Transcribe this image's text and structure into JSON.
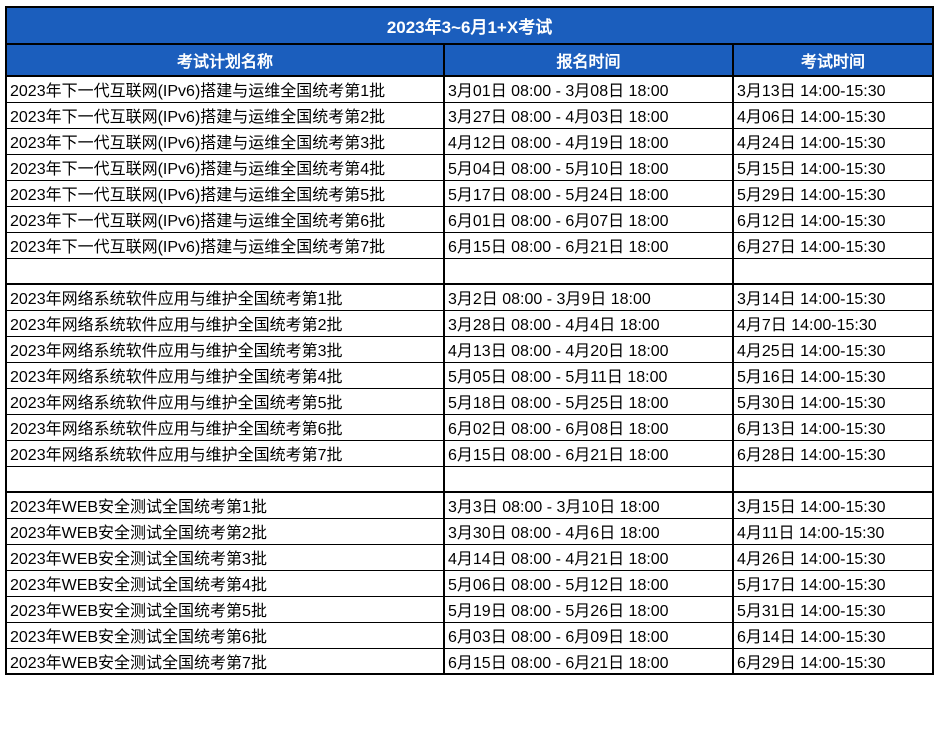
{
  "title": "2023年3~6月1+X考试",
  "columns": [
    "考试计划名称",
    "报名时间",
    "考试时间"
  ],
  "colors": {
    "header_bg": "#1B5EBD",
    "header_text": "#FFFFFF",
    "border": "#000000",
    "row_bg": "#FFFFFF"
  },
  "rows": [
    {
      "name": "2023年下一代互联网(IPv6)搭建与运维全国统考第1批",
      "signup": "3月01日 08:00 - 3月08日 18:00",
      "exam": "3月13日 14:00-15:30"
    },
    {
      "name": "2023年下一代互联网(IPv6)搭建与运维全国统考第2批",
      "signup": "3月27日 08:00 - 4月03日 18:00",
      "exam": "4月06日 14:00-15:30"
    },
    {
      "name": "2023年下一代互联网(IPv6)搭建与运维全国统考第3批",
      "signup": "4月12日 08:00 - 4月19日 18:00",
      "exam": "4月24日 14:00-15:30"
    },
    {
      "name": "2023年下一代互联网(IPv6)搭建与运维全国统考第4批",
      "signup": "5月04日 08:00 - 5月10日 18:00",
      "exam": "5月15日 14:00-15:30"
    },
    {
      "name": "2023年下一代互联网(IPv6)搭建与运维全国统考第5批",
      "signup": "5月17日 08:00 - 5月24日 18:00",
      "exam": "5月29日 14:00-15:30"
    },
    {
      "name": "2023年下一代互联网(IPv6)搭建与运维全国统考第6批",
      "signup": "6月01日 08:00 - 6月07日 18:00",
      "exam": "6月12日 14:00-15:30"
    },
    {
      "name": "2023年下一代互联网(IPv6)搭建与运维全国统考第7批",
      "signup": "6月15日 08:00 - 6月21日 18:00",
      "exam": "6月27日 14:00-15:30"
    },
    {
      "name": "",
      "signup": "",
      "exam": ""
    },
    {
      "name": "2023年网络系统软件应用与维护全国统考第1批",
      "signup": "3月2日 08:00 - 3月9日 18:00",
      "exam": "3月14日 14:00-15:30"
    },
    {
      "name": "2023年网络系统软件应用与维护全国统考第2批",
      "signup": "3月28日 08:00 - 4月4日 18:00",
      "exam": "4月7日 14:00-15:30"
    },
    {
      "name": "2023年网络系统软件应用与维护全国统考第3批",
      "signup": "4月13日 08:00 - 4月20日 18:00",
      "exam": "4月25日 14:00-15:30"
    },
    {
      "name": "2023年网络系统软件应用与维护全国统考第4批",
      "signup": "5月05日 08:00 - 5月11日 18:00",
      "exam": "5月16日 14:00-15:30"
    },
    {
      "name": "2023年网络系统软件应用与维护全国统考第5批",
      "signup": "5月18日 08:00 - 5月25日 18:00",
      "exam": "5月30日 14:00-15:30"
    },
    {
      "name": "2023年网络系统软件应用与维护全国统考第6批",
      "signup": "6月02日 08:00 - 6月08日 18:00",
      "exam": "6月13日 14:00-15:30"
    },
    {
      "name": "2023年网络系统软件应用与维护全国统考第7批",
      "signup": "6月15日 08:00 - 6月21日 18:00",
      "exam": "6月28日 14:00-15:30"
    },
    {
      "name": "",
      "signup": "",
      "exam": ""
    },
    {
      "name": "2023年WEB安全测试全国统考第1批",
      "signup": "3月3日 08:00 - 3月10日 18:00",
      "exam": "3月15日 14:00-15:30"
    },
    {
      "name": "2023年WEB安全测试全国统考第2批",
      "signup": "3月30日 08:00 - 4月6日 18:00",
      "exam": "4月11日 14:00-15:30"
    },
    {
      "name": "2023年WEB安全测试全国统考第3批",
      "signup": "4月14日 08:00 - 4月21日 18:00",
      "exam": "4月26日 14:00-15:30"
    },
    {
      "name": "2023年WEB安全测试全国统考第4批",
      "signup": "5月06日 08:00 - 5月12日 18:00",
      "exam": "5月17日 14:00-15:30"
    },
    {
      "name": "2023年WEB安全测试全国统考第5批",
      "signup": "5月19日 08:00 - 5月26日 18:00",
      "exam": "5月31日 14:00-15:30"
    },
    {
      "name": "2023年WEB安全测试全国统考第6批",
      "signup": "6月03日 08:00 - 6月09日 18:00",
      "exam": "6月14日 14:00-15:30"
    },
    {
      "name": "2023年WEB安全测试全国统考第7批",
      "signup": "6月15日 08:00 - 6月21日 18:00",
      "exam": "6月29日 14:00-15:30"
    }
  ]
}
